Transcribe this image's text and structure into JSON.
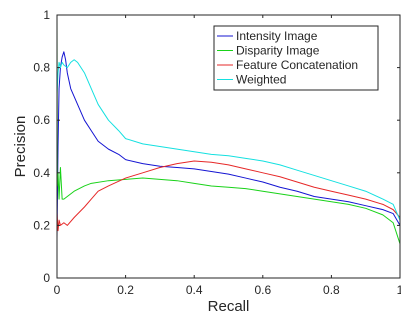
{
  "chart_data": {
    "type": "line",
    "xlabel": "Recall",
    "ylabel": "Precision",
    "xlim": [
      0,
      1
    ],
    "ylim": [
      0,
      1
    ],
    "x_ticks": [
      "0",
      "0.2",
      "0.4",
      "0.6",
      "0.8",
      "1"
    ],
    "y_ticks": [
      "0",
      "0.2",
      "0.4",
      "0.6",
      "0.8",
      "1"
    ],
    "grid": false,
    "legend_position": "top-right",
    "series": [
      {
        "name": "Intensity Image",
        "color": "#1414d2",
        "points": [
          [
            0.0,
            0.15
          ],
          [
            0.003,
            0.5
          ],
          [
            0.006,
            0.72
          ],
          [
            0.01,
            0.8
          ],
          [
            0.015,
            0.84
          ],
          [
            0.02,
            0.86
          ],
          [
            0.025,
            0.83
          ],
          [
            0.03,
            0.78
          ],
          [
            0.04,
            0.72
          ],
          [
            0.06,
            0.66
          ],
          [
            0.08,
            0.6
          ],
          [
            0.1,
            0.56
          ],
          [
            0.12,
            0.52
          ],
          [
            0.15,
            0.49
          ],
          [
            0.18,
            0.47
          ],
          [
            0.2,
            0.45
          ],
          [
            0.25,
            0.435
          ],
          [
            0.3,
            0.425
          ],
          [
            0.35,
            0.42
          ],
          [
            0.4,
            0.415
          ],
          [
            0.45,
            0.405
          ],
          [
            0.5,
            0.395
          ],
          [
            0.55,
            0.38
          ],
          [
            0.6,
            0.365
          ],
          [
            0.65,
            0.345
          ],
          [
            0.7,
            0.33
          ],
          [
            0.75,
            0.31
          ],
          [
            0.8,
            0.3
          ],
          [
            0.85,
            0.29
          ],
          [
            0.9,
            0.275
          ],
          [
            0.95,
            0.26
          ],
          [
            0.98,
            0.245
          ],
          [
            1.0,
            0.2
          ]
        ]
      },
      {
        "name": "Disparity Image",
        "color": "#19d219",
        "points": [
          [
            0.0,
            1.0
          ],
          [
            0.001,
            0.35
          ],
          [
            0.003,
            0.4
          ],
          [
            0.006,
            0.3
          ],
          [
            0.01,
            0.42
          ],
          [
            0.015,
            0.3
          ],
          [
            0.02,
            0.3
          ],
          [
            0.03,
            0.31
          ],
          [
            0.05,
            0.33
          ],
          [
            0.08,
            0.35
          ],
          [
            0.1,
            0.36
          ],
          [
            0.15,
            0.37
          ],
          [
            0.2,
            0.375
          ],
          [
            0.25,
            0.38
          ],
          [
            0.3,
            0.375
          ],
          [
            0.35,
            0.37
          ],
          [
            0.4,
            0.36
          ],
          [
            0.45,
            0.35
          ],
          [
            0.5,
            0.345
          ],
          [
            0.55,
            0.34
          ],
          [
            0.6,
            0.33
          ],
          [
            0.65,
            0.32
          ],
          [
            0.7,
            0.31
          ],
          [
            0.75,
            0.3
          ],
          [
            0.8,
            0.29
          ],
          [
            0.85,
            0.28
          ],
          [
            0.9,
            0.265
          ],
          [
            0.95,
            0.24
          ],
          [
            0.98,
            0.21
          ],
          [
            1.0,
            0.13
          ]
        ]
      },
      {
        "name": "Feature Concatenation",
        "color": "#e62828",
        "points": [
          [
            0.0,
            0.25
          ],
          [
            0.003,
            0.18
          ],
          [
            0.006,
            0.22
          ],
          [
            0.01,
            0.2
          ],
          [
            0.02,
            0.21
          ],
          [
            0.03,
            0.2
          ],
          [
            0.05,
            0.23
          ],
          [
            0.08,
            0.27
          ],
          [
            0.1,
            0.3
          ],
          [
            0.12,
            0.33
          ],
          [
            0.15,
            0.35
          ],
          [
            0.2,
            0.38
          ],
          [
            0.25,
            0.4
          ],
          [
            0.3,
            0.42
          ],
          [
            0.35,
            0.435
          ],
          [
            0.4,
            0.445
          ],
          [
            0.45,
            0.44
          ],
          [
            0.5,
            0.43
          ],
          [
            0.55,
            0.415
          ],
          [
            0.6,
            0.4
          ],
          [
            0.65,
            0.385
          ],
          [
            0.7,
            0.365
          ],
          [
            0.75,
            0.345
          ],
          [
            0.8,
            0.33
          ],
          [
            0.85,
            0.315
          ],
          [
            0.9,
            0.3
          ],
          [
            0.95,
            0.28
          ],
          [
            0.98,
            0.26
          ],
          [
            1.0,
            0.23
          ]
        ]
      },
      {
        "name": "Weighted",
        "color": "#14e0e0",
        "points": [
          [
            0.0,
            0.7
          ],
          [
            0.003,
            0.78
          ],
          [
            0.006,
            0.82
          ],
          [
            0.01,
            0.8
          ],
          [
            0.015,
            0.82
          ],
          [
            0.02,
            0.81
          ],
          [
            0.03,
            0.8
          ],
          [
            0.04,
            0.82
          ],
          [
            0.05,
            0.83
          ],
          [
            0.06,
            0.82
          ],
          [
            0.08,
            0.78
          ],
          [
            0.1,
            0.72
          ],
          [
            0.12,
            0.66
          ],
          [
            0.15,
            0.6
          ],
          [
            0.18,
            0.56
          ],
          [
            0.2,
            0.53
          ],
          [
            0.25,
            0.51
          ],
          [
            0.3,
            0.5
          ],
          [
            0.35,
            0.49
          ],
          [
            0.4,
            0.48
          ],
          [
            0.45,
            0.47
          ],
          [
            0.5,
            0.465
          ],
          [
            0.55,
            0.455
          ],
          [
            0.6,
            0.445
          ],
          [
            0.65,
            0.43
          ],
          [
            0.7,
            0.41
          ],
          [
            0.75,
            0.39
          ],
          [
            0.8,
            0.37
          ],
          [
            0.85,
            0.35
          ],
          [
            0.9,
            0.33
          ],
          [
            0.95,
            0.3
          ],
          [
            0.98,
            0.28
          ],
          [
            1.0,
            0.22
          ]
        ]
      }
    ]
  }
}
